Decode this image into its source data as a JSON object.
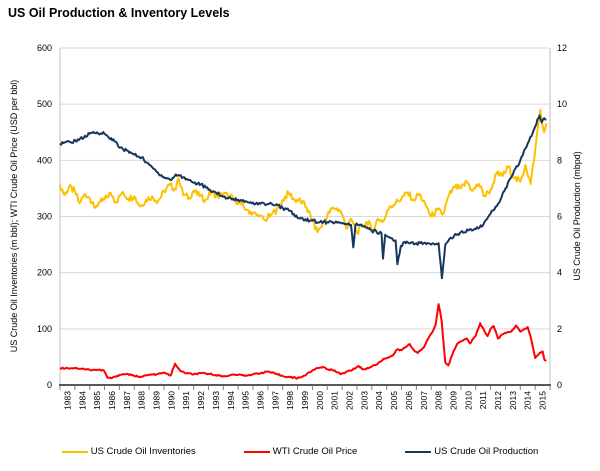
{
  "title": "US Oil Production & Inventory Levels",
  "chart_data": {
    "type": "line",
    "title": "US Oil Production & Inventory Levels",
    "grid": true,
    "legend_position": "bottom",
    "x_axis": {
      "range": [
        1983,
        2016
      ],
      "ticks": [
        "1983",
        "1984",
        "1985",
        "1986",
        "1987",
        "1988",
        "1989",
        "1990",
        "1991",
        "1992",
        "1993",
        "1994",
        "1995",
        "1996",
        "1997",
        "1998",
        "1999",
        "2000",
        "2001",
        "2002",
        "2003",
        "2004",
        "2005",
        "2006",
        "2007",
        "2008",
        "2009",
        "2010",
        "2011",
        "2012",
        "2013",
        "2014",
        "2015"
      ]
    },
    "y_left": {
      "label": "US Crude Oil Inventories (m bbl); WTI Crude Oil Price (USD per bbl)",
      "range": [
        0,
        600
      ],
      "ticks": [
        0,
        100,
        200,
        300,
        400,
        500,
        600
      ]
    },
    "y_right": {
      "label": "US Crude Oil Production (mbpd)",
      "range": [
        0,
        12
      ],
      "ticks": [
        0,
        2,
        4,
        6,
        8,
        10,
        12
      ]
    },
    "series": [
      {
        "name": "US Crude Oil Inventories",
        "axis": "left",
        "color": "#FFC000",
        "jitter": 6,
        "points": [
          [
            1983.0,
            357
          ],
          [
            1983.3,
            338
          ],
          [
            1983.6,
            352
          ],
          [
            1984.0,
            345
          ],
          [
            1984.3,
            324
          ],
          [
            1984.7,
            340
          ],
          [
            1985.0,
            333
          ],
          [
            1985.3,
            316
          ],
          [
            1985.7,
            326
          ],
          [
            1986.0,
            330
          ],
          [
            1986.4,
            342
          ],
          [
            1986.8,
            326
          ],
          [
            1987.2,
            344
          ],
          [
            1987.6,
            332
          ],
          [
            1988.0,
            336
          ],
          [
            1988.4,
            318
          ],
          [
            1988.8,
            330
          ],
          [
            1989.2,
            336
          ],
          [
            1989.6,
            327
          ],
          [
            1990.0,
            345
          ],
          [
            1990.4,
            356
          ],
          [
            1990.8,
            348
          ],
          [
            1991.0,
            368
          ],
          [
            1991.3,
            338
          ],
          [
            1991.7,
            334
          ],
          [
            1992.0,
            346
          ],
          [
            1992.4,
            336
          ],
          [
            1992.8,
            330
          ],
          [
            1993.2,
            344
          ],
          [
            1993.6,
            336
          ],
          [
            1994.0,
            340
          ],
          [
            1994.4,
            336
          ],
          [
            1994.8,
            330
          ],
          [
            1995.2,
            322
          ],
          [
            1995.6,
            312
          ],
          [
            1996.0,
            306
          ],
          [
            1996.4,
            300
          ],
          [
            1996.8,
            294
          ],
          [
            1997.2,
            303
          ],
          [
            1997.6,
            312
          ],
          [
            1998.0,
            330
          ],
          [
            1998.4,
            342
          ],
          [
            1998.8,
            330
          ],
          [
            1999.2,
            328
          ],
          [
            1999.6,
            316
          ],
          [
            2000.0,
            292
          ],
          [
            2000.35,
            272
          ],
          [
            2000.7,
            288
          ],
          [
            2001.0,
            302
          ],
          [
            2001.4,
            316
          ],
          [
            2001.8,
            312
          ],
          [
            2002.0,
            304
          ],
          [
            2002.3,
            278
          ],
          [
            2002.6,
            296
          ],
          [
            2003.0,
            272
          ],
          [
            2003.4,
            284
          ],
          [
            2003.8,
            292
          ],
          [
            2004.0,
            272
          ],
          [
            2004.4,
            296
          ],
          [
            2004.8,
            292
          ],
          [
            2005.2,
            318
          ],
          [
            2005.6,
            324
          ],
          [
            2006.0,
            332
          ],
          [
            2006.4,
            342
          ],
          [
            2006.8,
            330
          ],
          [
            2007.2,
            340
          ],
          [
            2007.6,
            322
          ],
          [
            2008.0,
            300
          ],
          [
            2008.4,
            312
          ],
          [
            2008.8,
            304
          ],
          [
            2009.2,
            338
          ],
          [
            2009.6,
            352
          ],
          [
            2010.0,
            350
          ],
          [
            2010.4,
            362
          ],
          [
            2010.8,
            346
          ],
          [
            2011.2,
            358
          ],
          [
            2011.6,
            336
          ],
          [
            2012.0,
            348
          ],
          [
            2012.4,
            376
          ],
          [
            2012.8,
            372
          ],
          [
            2013.2,
            388
          ],
          [
            2013.6,
            368
          ],
          [
            2014.0,
            362
          ],
          [
            2014.35,
            392
          ],
          [
            2014.7,
            358
          ],
          [
            2015.0,
            418
          ],
          [
            2015.2,
            462
          ],
          [
            2015.35,
            490
          ],
          [
            2015.5,
            462
          ],
          [
            2015.6,
            450
          ],
          [
            2015.75,
            466
          ]
        ]
      },
      {
        "name": "WTI Crude Oil Price",
        "axis": "left",
        "color": "#FF0000",
        "jitter": 1.2,
        "points": [
          [
            1983.0,
            30
          ],
          [
            1983.5,
            30
          ],
          [
            1984.0,
            30
          ],
          [
            1984.5,
            29
          ],
          [
            1985.0,
            27
          ],
          [
            1985.5,
            27
          ],
          [
            1985.95,
            26
          ],
          [
            1986.2,
            13
          ],
          [
            1986.45,
            12
          ],
          [
            1986.7,
            15
          ],
          [
            1987.0,
            18
          ],
          [
            1987.5,
            20
          ],
          [
            1988.0,
            16
          ],
          [
            1988.5,
            15
          ],
          [
            1989.0,
            18
          ],
          [
            1989.5,
            19
          ],
          [
            1990.0,
            22
          ],
          [
            1990.45,
            17
          ],
          [
            1990.75,
            38
          ],
          [
            1991.1,
            25
          ],
          [
            1991.5,
            21
          ],
          [
            1992.0,
            19
          ],
          [
            1992.5,
            21
          ],
          [
            1993.0,
            20
          ],
          [
            1993.5,
            18
          ],
          [
            1994.0,
            15
          ],
          [
            1994.5,
            18
          ],
          [
            1995.0,
            18
          ],
          [
            1995.5,
            17
          ],
          [
            1996.0,
            19
          ],
          [
            1996.5,
            21
          ],
          [
            1997.0,
            24
          ],
          [
            1997.5,
            20
          ],
          [
            1998.0,
            16
          ],
          [
            1998.5,
            14
          ],
          [
            1999.0,
            12
          ],
          [
            1999.5,
            17
          ],
          [
            2000.0,
            26
          ],
          [
            2000.3,
            30
          ],
          [
            2000.7,
            32
          ],
          [
            2001.0,
            28
          ],
          [
            2001.5,
            26
          ],
          [
            2001.9,
            19
          ],
          [
            2002.3,
            24
          ],
          [
            2002.7,
            27
          ],
          [
            2003.1,
            34
          ],
          [
            2003.4,
            28
          ],
          [
            2003.8,
            30
          ],
          [
            2004.0,
            33
          ],
          [
            2004.4,
            38
          ],
          [
            2004.8,
            47
          ],
          [
            2005.0,
            48
          ],
          [
            2005.4,
            52
          ],
          [
            2005.7,
            63
          ],
          [
            2006.0,
            62
          ],
          [
            2006.55,
            73
          ],
          [
            2006.9,
            60
          ],
          [
            2007.1,
            57
          ],
          [
            2007.5,
            67
          ],
          [
            2007.9,
            88
          ],
          [
            2008.1,
            95
          ],
          [
            2008.3,
            108
          ],
          [
            2008.5,
            144
          ],
          [
            2008.7,
            115
          ],
          [
            2008.95,
            40
          ],
          [
            2009.15,
            35
          ],
          [
            2009.5,
            60
          ],
          [
            2009.8,
            75
          ],
          [
            2010.0,
            78
          ],
          [
            2010.4,
            83
          ],
          [
            2010.6,
            74
          ],
          [
            2011.0,
            88
          ],
          [
            2011.3,
            110
          ],
          [
            2011.6,
            95
          ],
          [
            2011.8,
            87
          ],
          [
            2012.0,
            100
          ],
          [
            2012.2,
            105
          ],
          [
            2012.5,
            83
          ],
          [
            2012.8,
            90
          ],
          [
            2013.0,
            93
          ],
          [
            2013.4,
            95
          ],
          [
            2013.7,
            106
          ],
          [
            2014.0,
            95
          ],
          [
            2014.3,
            100
          ],
          [
            2014.5,
            103
          ],
          [
            2014.75,
            80
          ],
          [
            2015.0,
            48
          ],
          [
            2015.15,
            52
          ],
          [
            2015.35,
            58
          ],
          [
            2015.5,
            60
          ],
          [
            2015.62,
            45
          ],
          [
            2015.75,
            43
          ]
        ]
      },
      {
        "name": "US Crude Oil Production",
        "axis": "right",
        "color": "#17375E",
        "jitter": 0.06,
        "points": [
          [
            1983.0,
            8.6
          ],
          [
            1983.4,
            8.65
          ],
          [
            1983.8,
            8.62
          ],
          [
            1984.2,
            8.75
          ],
          [
            1984.6,
            8.8
          ],
          [
            1985.0,
            8.95
          ],
          [
            1985.5,
            9.0
          ],
          [
            1986.0,
            8.95
          ],
          [
            1986.3,
            8.8
          ],
          [
            1986.6,
            8.75
          ],
          [
            1987.0,
            8.45
          ],
          [
            1987.5,
            8.35
          ],
          [
            1988.0,
            8.2
          ],
          [
            1988.5,
            8.1
          ],
          [
            1989.0,
            7.85
          ],
          [
            1989.5,
            7.6
          ],
          [
            1990.0,
            7.4
          ],
          [
            1990.5,
            7.3
          ],
          [
            1990.8,
            7.5
          ],
          [
            1991.3,
            7.4
          ],
          [
            1991.7,
            7.3
          ],
          [
            1992.0,
            7.2
          ],
          [
            1992.5,
            7.15
          ],
          [
            1993.0,
            6.95
          ],
          [
            1993.5,
            6.85
          ],
          [
            1994.0,
            6.7
          ],
          [
            1994.5,
            6.65
          ],
          [
            1995.0,
            6.6
          ],
          [
            1995.5,
            6.55
          ],
          [
            1996.0,
            6.5
          ],
          [
            1996.5,
            6.45
          ],
          [
            1997.0,
            6.45
          ],
          [
            1997.5,
            6.4
          ],
          [
            1998.0,
            6.3
          ],
          [
            1998.5,
            6.2
          ],
          [
            1999.0,
            5.95
          ],
          [
            1999.5,
            5.9
          ],
          [
            2000.0,
            5.85
          ],
          [
            2000.5,
            5.8
          ],
          [
            2001.0,
            5.8
          ],
          [
            2001.5,
            5.78
          ],
          [
            2002.0,
            5.75
          ],
          [
            2002.6,
            5.7
          ],
          [
            2002.75,
            4.9
          ],
          [
            2002.9,
            5.7
          ],
          [
            2003.2,
            5.7
          ],
          [
            2003.6,
            5.6
          ],
          [
            2004.0,
            5.5
          ],
          [
            2004.65,
            5.4
          ],
          [
            2004.75,
            4.5
          ],
          [
            2004.9,
            5.35
          ],
          [
            2005.2,
            5.25
          ],
          [
            2005.6,
            5.15
          ],
          [
            2005.72,
            4.3
          ],
          [
            2005.95,
            4.95
          ],
          [
            2006.2,
            5.1
          ],
          [
            2006.6,
            5.05
          ],
          [
            2007.0,
            5.05
          ],
          [
            2007.5,
            5.05
          ],
          [
            2008.0,
            5.0
          ],
          [
            2008.5,
            5.05
          ],
          [
            2008.72,
            3.8
          ],
          [
            2008.95,
            5.0
          ],
          [
            2009.3,
            5.25
          ],
          [
            2009.7,
            5.35
          ],
          [
            2010.0,
            5.45
          ],
          [
            2010.5,
            5.5
          ],
          [
            2011.0,
            5.55
          ],
          [
            2011.5,
            5.7
          ],
          [
            2012.0,
            6.1
          ],
          [
            2012.5,
            6.45
          ],
          [
            2013.0,
            7.0
          ],
          [
            2013.5,
            7.5
          ],
          [
            2014.0,
            8.0
          ],
          [
            2014.5,
            8.6
          ],
          [
            2015.0,
            9.2
          ],
          [
            2015.3,
            9.6
          ],
          [
            2015.45,
            9.35
          ],
          [
            2015.6,
            9.5
          ],
          [
            2015.75,
            9.45
          ]
        ]
      }
    ],
    "style": {
      "gridline_color": "#D9D9D9",
      "plot_border_color": "#BFBFBF",
      "x_axis_color": "#595959",
      "tick_color": "#808080",
      "text_color": "#000000"
    }
  }
}
